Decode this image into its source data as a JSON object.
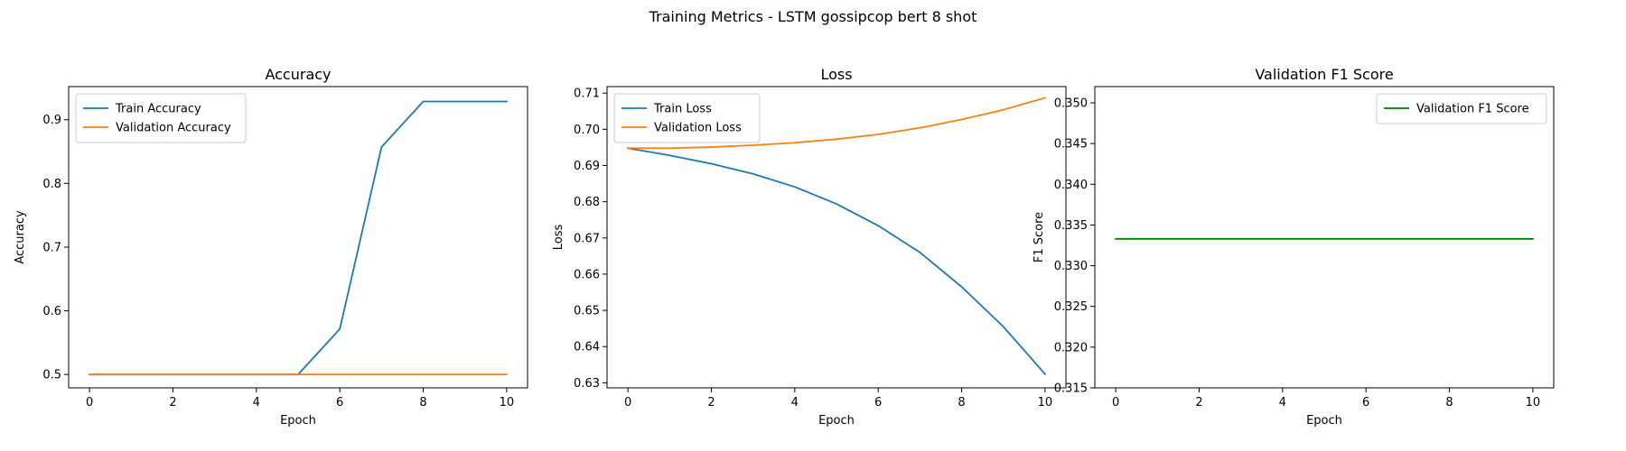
{
  "figure_title": "Training Metrics - LSTM gossipcop bert 8 shot",
  "chart_data": [
    {
      "type": "line",
      "title": "Accuracy",
      "xlabel": "Epoch",
      "ylabel": "Accuracy",
      "xlim": [
        -0.5,
        10.5
      ],
      "ylim": [
        0.479,
        0.952
      ],
      "xticks": [
        0,
        2,
        4,
        6,
        8,
        10
      ],
      "yticks": [
        0.5,
        0.6,
        0.7,
        0.8,
        0.9
      ],
      "legend_position": "top-left",
      "series": [
        {
          "name": "Train Accuracy",
          "color": "#1f77b4",
          "x": [
            0,
            1,
            2,
            3,
            4,
            5,
            6,
            7,
            8,
            9,
            10
          ],
          "y": [
            0.5,
            0.5,
            0.5,
            0.5,
            0.5,
            0.5,
            0.5714,
            0.8571,
            0.9286,
            0.9286,
            0.9286
          ]
        },
        {
          "name": "Validation Accuracy",
          "color": "#ff7f0e",
          "x": [
            0,
            1,
            2,
            3,
            4,
            5,
            6,
            7,
            8,
            9,
            10
          ],
          "y": [
            0.5,
            0.5,
            0.5,
            0.5,
            0.5,
            0.5,
            0.5,
            0.5,
            0.5,
            0.5,
            0.5
          ]
        }
      ]
    },
    {
      "type": "line",
      "title": "Loss",
      "xlabel": "Epoch",
      "ylabel": "Loss",
      "xlim": [
        -0.5,
        10.5
      ],
      "ylim": [
        0.6286,
        0.7118
      ],
      "xticks": [
        0,
        2,
        4,
        6,
        8,
        10
      ],
      "yticks": [
        0.63,
        0.64,
        0.65,
        0.66,
        0.67,
        0.68,
        0.69,
        0.7,
        0.71
      ],
      "legend_position": "top-left",
      "series": [
        {
          "name": "Train Loss",
          "color": "#1f77b4",
          "x": [
            0,
            1,
            2,
            3,
            4,
            5,
            6,
            7,
            8,
            9,
            10
          ],
          "y": [
            0.6948,
            0.6928,
            0.6905,
            0.6877,
            0.6841,
            0.6794,
            0.6734,
            0.666,
            0.6565,
            0.6455,
            0.6324
          ]
        },
        {
          "name": "Validation Loss",
          "color": "#ff7f0e",
          "x": [
            0,
            1,
            2,
            3,
            4,
            5,
            6,
            7,
            8,
            9,
            10
          ],
          "y": [
            0.6948,
            0.6948,
            0.6951,
            0.6956,
            0.6963,
            0.6973,
            0.6986,
            0.7004,
            0.7027,
            0.7054,
            0.7087
          ]
        }
      ]
    },
    {
      "type": "line",
      "title": "Validation F1 Score",
      "xlabel": "Epoch",
      "ylabel": "F1 Score",
      "xlim": [
        -0.5,
        10.5
      ],
      "ylim": [
        0.315,
        0.352
      ],
      "xticks": [
        0,
        2,
        4,
        6,
        8,
        10
      ],
      "yticks": [
        0.315,
        0.32,
        0.325,
        0.33,
        0.335,
        0.34,
        0.345,
        0.35
      ],
      "legend_position": "top-right",
      "series": [
        {
          "name": "Validation F1 Score",
          "color": "#008000",
          "x": [
            0,
            1,
            2,
            3,
            4,
            5,
            6,
            7,
            8,
            9,
            10
          ],
          "y": [
            0.3333,
            0.3333,
            0.3333,
            0.3333,
            0.3333,
            0.3333,
            0.3333,
            0.3333,
            0.3333,
            0.3333,
            0.3333
          ]
        }
      ]
    }
  ]
}
